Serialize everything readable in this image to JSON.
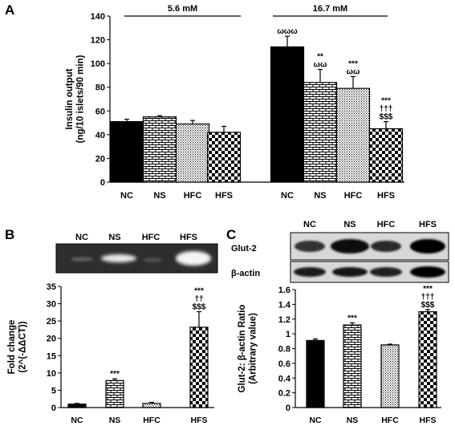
{
  "figure": {
    "colors": {
      "ink": "#000000",
      "white": "#ffffff",
      "blot_bg": "#d8d8d8",
      "gel_bg": "#2e2e2e"
    },
    "fills": [
      "solid-black",
      "brick",
      "dots",
      "checker"
    ]
  },
  "chart_data": [
    {
      "panel": "A",
      "type": "bar",
      "ylabel": "Insulin output\n(ng/10 islets/90 min)",
      "ylim": [
        0,
        140
      ],
      "yticks": [
        0,
        20,
        40,
        60,
        80,
        100,
        120,
        140
      ],
      "groups": [
        {
          "label": "5.6 mM",
          "categories": [
            "NC",
            "NS",
            "HFC",
            "HFS"
          ],
          "values": [
            51,
            55,
            49,
            42
          ],
          "errors": [
            2,
            1,
            3,
            5
          ],
          "annotations": [
            "",
            "",
            "",
            ""
          ]
        },
        {
          "label": "16.7 mM",
          "categories": [
            "NC",
            "NS",
            "HFC",
            "HFS"
          ],
          "values": [
            114,
            84,
            79,
            45
          ],
          "errors": [
            9,
            11,
            10,
            6
          ],
          "annotations": [
            "ωωω",
            "**\nωω",
            "***\nωω",
            "***\n†††\n$$$"
          ]
        }
      ]
    },
    {
      "panel": "B",
      "type": "bar",
      "ylabel": "Fold change\n(2^(-ΔΔCT))",
      "ylim": [
        0,
        35
      ],
      "yticks": [
        0,
        5,
        10,
        15,
        20,
        25,
        30,
        35
      ],
      "categories": [
        "NC",
        "NS",
        "HFC",
        "HFS"
      ],
      "values": [
        1,
        7.8,
        1.2,
        23.2
      ],
      "errors": [
        0.2,
        0.5,
        0.3,
        4.5
      ],
      "annotations": [
        "",
        "***",
        "",
        "***\n††\n$$$"
      ],
      "gel": {
        "lane_labels": [
          "NC",
          "NS",
          "HFC",
          "HFS"
        ]
      }
    },
    {
      "panel": "C",
      "type": "bar",
      "ylabel": "Glut-2: β-actin Ratio\n(Arbitrary value)",
      "ylim": [
        0,
        1.6
      ],
      "yticks": [
        "0",
        "0.2",
        "0.4",
        "0.6",
        "0.8",
        "1",
        "1.2",
        "1.4",
        "1.6"
      ],
      "categories": [
        "NC",
        "NS",
        "HFC",
        "HFS"
      ],
      "values": [
        0.91,
        1.12,
        0.85,
        1.3
      ],
      "errors": [
        0.02,
        0.03,
        0.01,
        0.03
      ],
      "annotations": [
        "",
        "***",
        "",
        "***\n†††\n$$$"
      ],
      "blot": {
        "lane_labels": [
          "NC",
          "NS",
          "HFC",
          "HFS"
        ],
        "row_labels": [
          "Glut-2",
          "β-actin"
        ]
      }
    }
  ]
}
